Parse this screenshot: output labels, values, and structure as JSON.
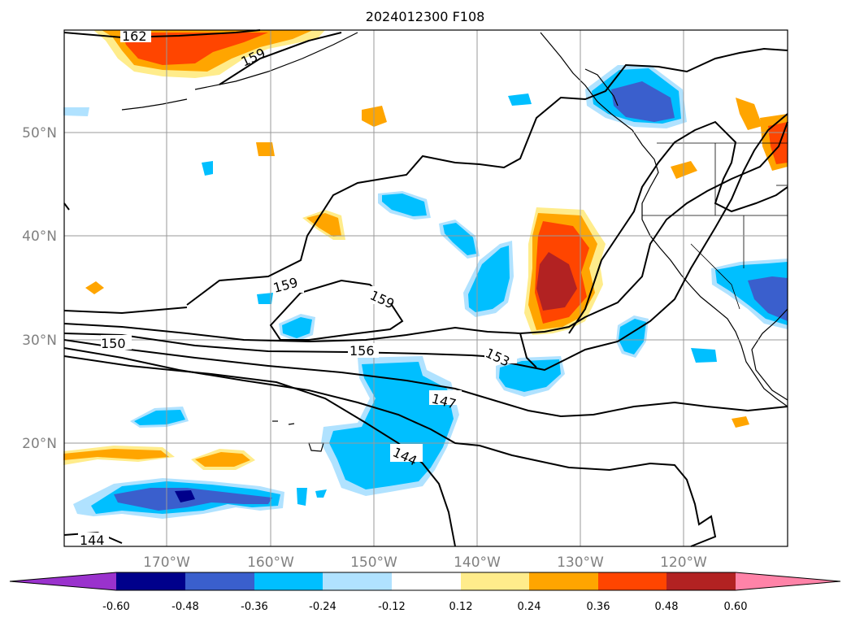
{
  "title": "2024012300 F108",
  "latitude_labels": [
    "50°N",
    "40°N",
    "30°N",
    "20°N"
  ],
  "longitude_labels": [
    "170°W",
    "160°W",
    "150°W",
    "140°W",
    "130°W",
    "120°W"
  ],
  "contour_labels": [
    "162",
    "159",
    "159",
    "159",
    "150",
    "156",
    "153",
    "147",
    "144",
    "144"
  ],
  "colorbar": {
    "tick_labels": [
      "-0.60",
      "-0.48",
      "-0.36",
      "-0.24",
      "-0.12",
      "0.12",
      "0.24",
      "0.36",
      "0.48",
      "0.60"
    ],
    "colors": [
      "#9a32cd",
      "#00008b",
      "#3a5fcd",
      "#00bfff",
      "#b0e2ff",
      "#ffffff",
      "#ffec8b",
      "#ffa500",
      "#ff4500",
      "#b22222",
      "#ff83a8"
    ]
  },
  "colors": {
    "grid": "#9a9a9a",
    "tick_text": "#808080",
    "contour": "#000000"
  }
}
